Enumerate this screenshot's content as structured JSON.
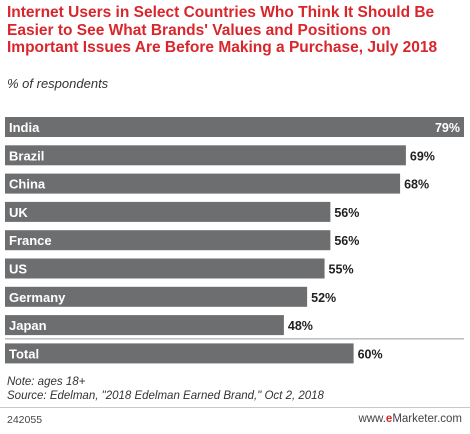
{
  "chart_data": {
    "type": "bar",
    "orientation": "horizontal",
    "title": "Internet Users in Select Countries Who Think It Should Be Easier to See What Brands' Values and Positions on Important Issues Are Before Making a Purchase, July 2018",
    "subtitle": "% of respondents",
    "categories": [
      "India",
      "Brazil",
      "China",
      "UK",
      "France",
      "US",
      "Germany",
      "Japan",
      "Total"
    ],
    "values": [
      79,
      69,
      68,
      56,
      56,
      55,
      52,
      48,
      60
    ],
    "value_labels": [
      "79%",
      "69%",
      "68%",
      "56%",
      "56%",
      "55%",
      "52%",
      "48%",
      "60%"
    ],
    "xlim": [
      0,
      79
    ],
    "grid": false,
    "legend": "none",
    "colors": {
      "bar": "#6d6e70",
      "bar_label": "#ffffff",
      "value_label": "#222222",
      "separator": "#ffffff"
    }
  },
  "footer": {
    "note": "Note: ages 18+",
    "source": "Source: Edelman, \"2018 Edelman Earned Brand,\" Oct 2, 2018",
    "chart_id": "242055",
    "brand_prefix": "www.",
    "brand_e": "e",
    "brand_suffix": "Marketer.com"
  },
  "colors": {
    "title": "#d9262c",
    "brand_accent": "#d9262c"
  }
}
